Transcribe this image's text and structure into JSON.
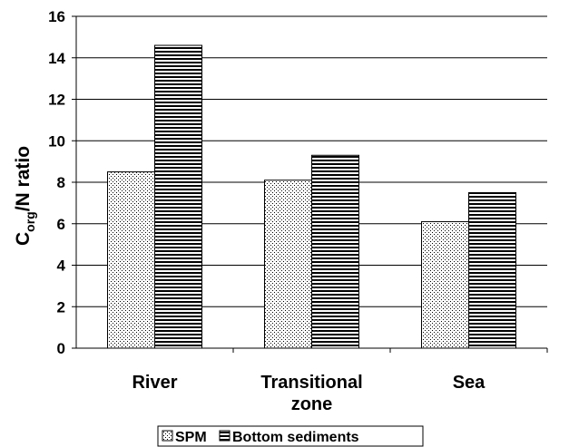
{
  "chart_data": {
    "type": "bar",
    "title": "",
    "xlabel": "",
    "ylabel": {
      "main": "C",
      "subscript": "org",
      "rest": "/N ratio"
    },
    "categories": [
      [
        "River"
      ],
      [
        "Transitional",
        "zone"
      ],
      [
        "Sea"
      ]
    ],
    "series": [
      {
        "name": "SPM",
        "values": [
          8.5,
          8.1,
          6.1
        ],
        "pattern": "dots"
      },
      {
        "name": "Bottom sediments",
        "values": [
          14.6,
          9.3,
          7.5
        ],
        "pattern": "horizontal-lines"
      }
    ],
    "ylim": [
      0,
      16
    ],
    "yticks": [
      "0",
      "2",
      "4",
      "6",
      "8",
      "10",
      "12",
      "14",
      "16"
    ],
    "grid": true,
    "legend_position": "bottom"
  },
  "colors": {
    "bar_fill": "#ffffff",
    "stroke": "#000000",
    "grid": "#000000"
  }
}
